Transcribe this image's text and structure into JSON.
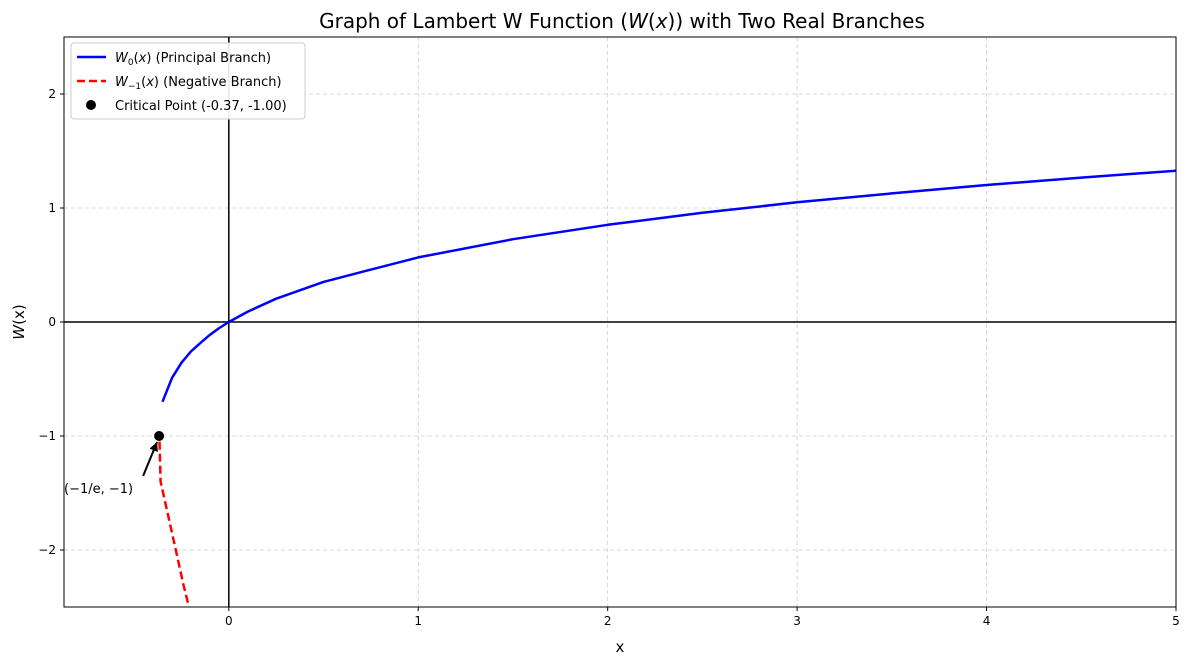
{
  "chart_data": {
    "type": "line",
    "title": "Graph of Lambert W Function (W(x)) with Two Real Branches",
    "xlabel": "x",
    "ylabel": "W(x)",
    "xlim": [
      -0.87,
      5
    ],
    "ylim": [
      -2.5,
      2.5
    ],
    "xticks": [
      0,
      1,
      2,
      3,
      4,
      5
    ],
    "yticks": [
      -2,
      -1,
      0,
      1,
      2
    ],
    "xtick_labels": [
      "0",
      "1",
      "2",
      "3",
      "4",
      "5"
    ],
    "ytick_labels": [
      "−2",
      "−1",
      "0",
      "1",
      "2"
    ],
    "grid": true,
    "legend_position": "top-left",
    "series": [
      {
        "name": "W₀(x) (Principal Branch)",
        "style": "solid",
        "color": "#0000ff",
        "points": [
          [
            -0.35,
            -0.7
          ],
          [
            -0.3,
            -0.49
          ],
          [
            -0.25,
            -0.357
          ],
          [
            -0.2,
            -0.259
          ],
          [
            -0.15,
            -0.183
          ],
          [
            -0.1,
            -0.112
          ],
          [
            -0.05,
            -0.053
          ],
          [
            0,
            0
          ],
          [
            0.1,
            0.091
          ],
          [
            0.25,
            0.204
          ],
          [
            0.5,
            0.352
          ],
          [
            0.75,
            0.46
          ],
          [
            1,
            0.567
          ],
          [
            1.5,
            0.726
          ],
          [
            2,
            0.853
          ],
          [
            2.5,
            0.958
          ],
          [
            3,
            1.05
          ],
          [
            3.5,
            1.128
          ],
          [
            4,
            1.202
          ],
          [
            4.5,
            1.267
          ],
          [
            5,
            1.327
          ]
        ]
      },
      {
        "name": "W₋₁(x) (Negative Branch)",
        "style": "dashed",
        "color": "#ff0000",
        "points": [
          [
            -0.366,
            -1.05
          ],
          [
            -0.36,
            -1.4
          ],
          [
            -0.32,
            -1.7
          ],
          [
            -0.28,
            -2.0
          ],
          [
            -0.24,
            -2.3
          ],
          [
            -0.21,
            -2.5
          ]
        ]
      }
    ],
    "points": [
      {
        "name": "Critical Point (-0.37, -1.00)",
        "x": -0.368,
        "y": -1.0,
        "color": "#000000"
      }
    ],
    "annotations": [
      {
        "text": "(−1/e, −1)",
        "x": -0.368,
        "y": -1.0
      }
    ],
    "colors": {
      "principal": "#0000ff",
      "negative": "#ff0000",
      "grid": "#cccccc",
      "axis": "#000000"
    }
  }
}
